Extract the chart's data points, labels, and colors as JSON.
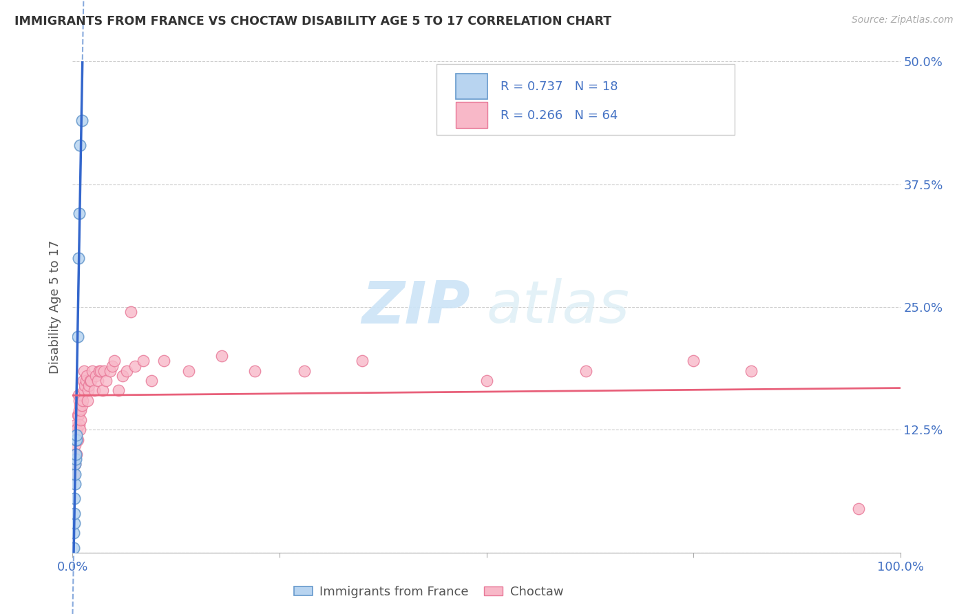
{
  "title": "IMMIGRANTS FROM FRANCE VS CHOCTAW DISABILITY AGE 5 TO 17 CORRELATION CHART",
  "source": "Source: ZipAtlas.com",
  "ylabel": "Disability Age 5 to 17",
  "r1": "R = 0.737",
  "n1": "N = 18",
  "r2": "R = 0.266",
  "n2": "N = 64",
  "color_blue_fill": "#b8d4f0",
  "color_blue_edge": "#6699cc",
  "color_pink_fill": "#f8b8c8",
  "color_pink_edge": "#e87898",
  "color_line_blue_solid": "#3366cc",
  "color_line_blue_dash": "#88aadd",
  "color_line_pink": "#e8607a",
  "color_tick": "#4472c4",
  "color_grid": "#cccccc",
  "legend_label1": "Immigrants from France",
  "legend_label2": "Choctaw",
  "xlim": [
    0.0,
    1.0
  ],
  "ylim": [
    0.0,
    0.5
  ],
  "france_x": [
    0.001,
    0.001,
    0.002,
    0.002,
    0.002,
    0.003,
    0.003,
    0.003,
    0.004,
    0.004,
    0.004,
    0.005,
    0.005,
    0.006,
    0.007,
    0.008,
    0.009,
    0.011
  ],
  "france_y": [
    0.005,
    0.02,
    0.03,
    0.04,
    0.055,
    0.07,
    0.08,
    0.09,
    0.095,
    0.1,
    0.115,
    0.115,
    0.12,
    0.22,
    0.3,
    0.345,
    0.415,
    0.44
  ],
  "choctaw_x": [
    0.001,
    0.002,
    0.002,
    0.003,
    0.003,
    0.004,
    0.004,
    0.005,
    0.005,
    0.006,
    0.006,
    0.007,
    0.007,
    0.008,
    0.008,
    0.008,
    0.009,
    0.009,
    0.01,
    0.01,
    0.011,
    0.011,
    0.012,
    0.013,
    0.014,
    0.014,
    0.015,
    0.016,
    0.017,
    0.018,
    0.019,
    0.02,
    0.021,
    0.022,
    0.024,
    0.026,
    0.028,
    0.03,
    0.032,
    0.034,
    0.036,
    0.038,
    0.04,
    0.045,
    0.048,
    0.05,
    0.055,
    0.06,
    0.065,
    0.07,
    0.075,
    0.085,
    0.095,
    0.11,
    0.14,
    0.18,
    0.22,
    0.28,
    0.35,
    0.5,
    0.62,
    0.75,
    0.82,
    0.95
  ],
  "choctaw_y": [
    0.08,
    0.1,
    0.12,
    0.09,
    0.11,
    0.1,
    0.13,
    0.1,
    0.125,
    0.115,
    0.14,
    0.14,
    0.16,
    0.13,
    0.145,
    0.155,
    0.125,
    0.15,
    0.135,
    0.145,
    0.15,
    0.16,
    0.155,
    0.175,
    0.165,
    0.185,
    0.17,
    0.175,
    0.18,
    0.155,
    0.165,
    0.17,
    0.175,
    0.175,
    0.185,
    0.165,
    0.18,
    0.175,
    0.185,
    0.185,
    0.165,
    0.185,
    0.175,
    0.185,
    0.19,
    0.195,
    0.165,
    0.18,
    0.185,
    0.245,
    0.19,
    0.195,
    0.175,
    0.195,
    0.185,
    0.2,
    0.185,
    0.185,
    0.195,
    0.175,
    0.185,
    0.195,
    0.185,
    0.045
  ]
}
